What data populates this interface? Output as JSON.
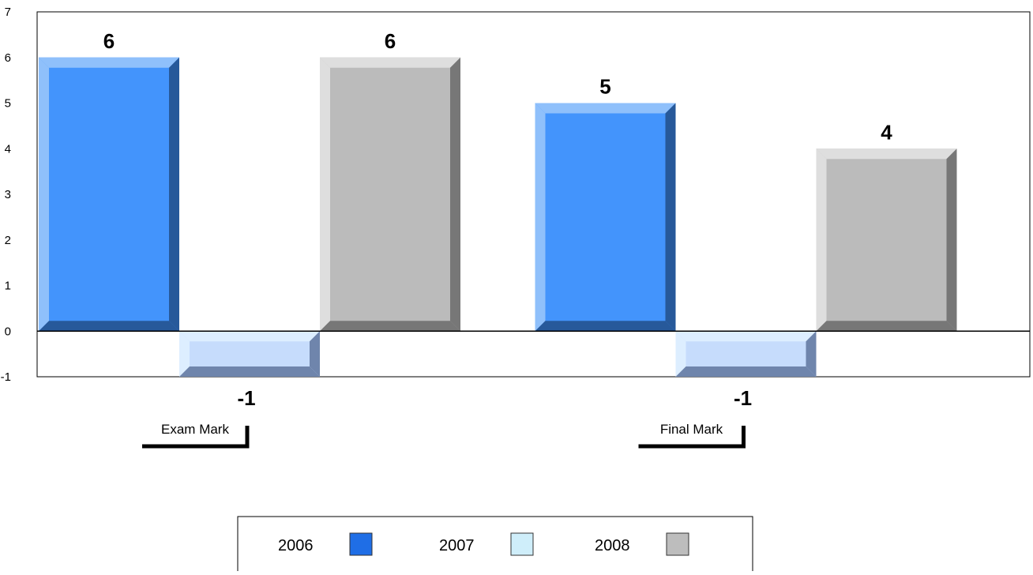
{
  "chart_data": {
    "type": "bar",
    "title": "",
    "xlabel": "",
    "ylabel": "",
    "categories": [
      "Exam Mark",
      "Final Mark"
    ],
    "series": [
      {
        "name": "2006",
        "values": [
          6,
          5
        ]
      },
      {
        "name": "2007",
        "values": [
          -1,
          -1
        ]
      },
      {
        "name": "2008",
        "values": [
          6,
          4
        ]
      }
    ],
    "data_labels": [
      [
        "6",
        "-1",
        "6"
      ],
      [
        "5",
        "-1",
        "4"
      ]
    ],
    "ylim": [
      -1,
      7
    ],
    "yticks": [
      "-1",
      "0",
      "1",
      "2",
      "3",
      "4",
      "5",
      "6",
      "7"
    ],
    "grid": false,
    "legend_position": "bottom",
    "style": "3d-bevel"
  },
  "colors": {
    "2006": {
      "face": "#4394fc",
      "light": "#8fc0fb",
      "dark": "#27599a",
      "legend": "#1f6ee6"
    },
    "2007": {
      "face": "#c6dcfc",
      "light": "#ddeeff",
      "dark": "#6f85ac",
      "legend": "#cfeefa"
    },
    "2008": {
      "face": "#bbbbbb",
      "light": "#dedede",
      "dark": "#777777",
      "legend": "#bdbdbd"
    }
  }
}
